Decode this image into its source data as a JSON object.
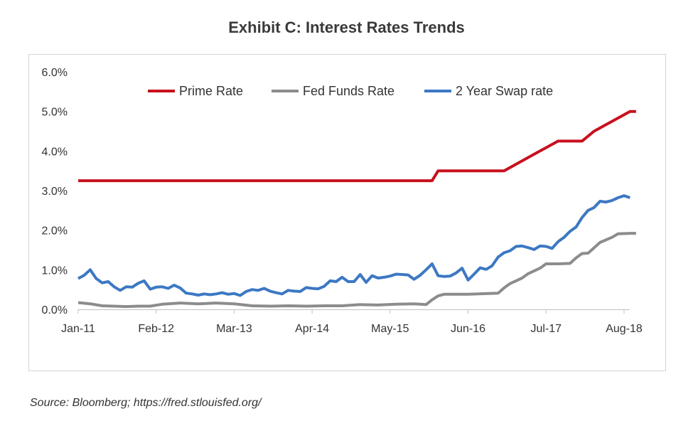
{
  "title": "Exhibit C:  Interest Rates Trends",
  "source": "Source: Bloomberg; https://fred.stlouisfed.org/",
  "colors": {
    "Prime Rate": "#c8101e",
    "Fed Funds Rate": "#8c8c8c",
    "2 Year Swap rate": "#3c78c3"
  },
  "chart_data": {
    "type": "line",
    "title": "Exhibit C:  Interest Rates Trends",
    "xlabel": "",
    "ylabel": "",
    "x_ticks": [
      "Jan-11",
      "Feb-12",
      "Mar-13",
      "Apr-14",
      "May-15",
      "Jun-16",
      "Jul-17",
      "Aug-18"
    ],
    "y_ticks": [
      "0.0%",
      "1.0%",
      "2.0%",
      "3.0%",
      "4.0%",
      "5.0%",
      "6.0%"
    ],
    "ylim": [
      0,
      6
    ],
    "legend_position": "top-center",
    "grid": false,
    "series": [
      {
        "name": "Prime Rate",
        "points": [
          [
            "Jan-11",
            3.25
          ],
          [
            "Dec-15",
            3.25
          ],
          [
            "Jan-16",
            3.5
          ],
          [
            "Dec-16",
            3.5
          ],
          [
            "Mar-17",
            3.75
          ],
          [
            "Jun-17",
            4.0
          ],
          [
            "Sep-17",
            4.25
          ],
          [
            "Jan-18",
            4.25
          ],
          [
            "Mar-18",
            4.5
          ],
          [
            "Jun-18",
            4.75
          ],
          [
            "Sep-18",
            5.0
          ],
          [
            "Oct-18",
            5.0
          ]
        ]
      },
      {
        "name": "Fed Funds Rate",
        "points": [
          [
            "Jan-11",
            0.17
          ],
          [
            "Mar-11",
            0.14
          ],
          [
            "May-11",
            0.09
          ],
          [
            "Jul-11",
            0.08
          ],
          [
            "Sep-11",
            0.07
          ],
          [
            "Nov-11",
            0.08
          ],
          [
            "Jan-12",
            0.08
          ],
          [
            "Mar-12",
            0.13
          ],
          [
            "Jun-12",
            0.16
          ],
          [
            "Sep-12",
            0.14
          ],
          [
            "Dec-12",
            0.16
          ],
          [
            "Mar-13",
            0.14
          ],
          [
            "Jun-13",
            0.09
          ],
          [
            "Sep-13",
            0.08
          ],
          [
            "Dec-13",
            0.09
          ],
          [
            "Mar-14",
            0.08
          ],
          [
            "Jun-14",
            0.09
          ],
          [
            "Sep-14",
            0.09
          ],
          [
            "Dec-14",
            0.12
          ],
          [
            "Mar-15",
            0.11
          ],
          [
            "Jun-15",
            0.13
          ],
          [
            "Sep-15",
            0.14
          ],
          [
            "Nov-15",
            0.12
          ],
          [
            "Dec-15",
            0.24
          ],
          [
            "Jan-16",
            0.34
          ],
          [
            "Feb-16",
            0.38
          ],
          [
            "Jun-16",
            0.38
          ],
          [
            "Nov-16",
            0.41
          ],
          [
            "Dec-16",
            0.54
          ],
          [
            "Jan-17",
            0.65
          ],
          [
            "Mar-17",
            0.79
          ],
          [
            "Apr-17",
            0.9
          ],
          [
            "Jun-17",
            1.04
          ],
          [
            "Jul-17",
            1.15
          ],
          [
            "Sep-17",
            1.15
          ],
          [
            "Nov-17",
            1.16
          ],
          [
            "Dec-17",
            1.3
          ],
          [
            "Jan-18",
            1.41
          ],
          [
            "Feb-18",
            1.42
          ],
          [
            "Apr-18",
            1.69
          ],
          [
            "Jun-18",
            1.82
          ],
          [
            "Jul-18",
            1.91
          ],
          [
            "Sep-18",
            1.92
          ],
          [
            "Oct-18",
            1.92
          ]
        ]
      },
      {
        "name": "2 Year Swap rate",
        "points": [
          [
            "Jan-11",
            0.78
          ],
          [
            "Feb-11",
            0.86
          ],
          [
            "Mar-11",
            1.0
          ],
          [
            "Apr-11",
            0.78
          ],
          [
            "May-11",
            0.67
          ],
          [
            "Jun-11",
            0.7
          ],
          [
            "Jul-11",
            0.57
          ],
          [
            "Aug-11",
            0.48
          ],
          [
            "Sep-11",
            0.57
          ],
          [
            "Oct-11",
            0.56
          ],
          [
            "Nov-11",
            0.66
          ],
          [
            "Dec-11",
            0.72
          ],
          [
            "Jan-12",
            0.51
          ],
          [
            "Feb-12",
            0.56
          ],
          [
            "Mar-12",
            0.57
          ],
          [
            "Apr-12",
            0.53
          ],
          [
            "May-12",
            0.61
          ],
          [
            "Jun-12",
            0.54
          ],
          [
            "Jul-12",
            0.41
          ],
          [
            "Aug-12",
            0.39
          ],
          [
            "Sep-12",
            0.36
          ],
          [
            "Oct-12",
            0.39
          ],
          [
            "Nov-12",
            0.37
          ],
          [
            "Dec-12",
            0.39
          ],
          [
            "Jan-13",
            0.42
          ],
          [
            "Feb-13",
            0.38
          ],
          [
            "Mar-13",
            0.4
          ],
          [
            "Apr-13",
            0.35
          ],
          [
            "May-13",
            0.45
          ],
          [
            "Jun-13",
            0.5
          ],
          [
            "Jul-13",
            0.48
          ],
          [
            "Aug-13",
            0.53
          ],
          [
            "Sep-13",
            0.46
          ],
          [
            "Oct-13",
            0.42
          ],
          [
            "Nov-13",
            0.39
          ],
          [
            "Dec-13",
            0.48
          ],
          [
            "Jan-14",
            0.46
          ],
          [
            "Feb-14",
            0.45
          ],
          [
            "Mar-14",
            0.55
          ],
          [
            "Apr-14",
            0.53
          ],
          [
            "May-14",
            0.52
          ],
          [
            "Jun-14",
            0.58
          ],
          [
            "Jul-14",
            0.72
          ],
          [
            "Aug-14",
            0.7
          ],
          [
            "Sep-14",
            0.81
          ],
          [
            "Oct-14",
            0.7
          ],
          [
            "Nov-14",
            0.7
          ],
          [
            "Dec-14",
            0.88
          ],
          [
            "Jan-15",
            0.68
          ],
          [
            "Feb-15",
            0.85
          ],
          [
            "Mar-15",
            0.79
          ],
          [
            "Apr-15",
            0.81
          ],
          [
            "May-15",
            0.84
          ],
          [
            "Jun-15",
            0.89
          ],
          [
            "Jul-15",
            0.88
          ],
          [
            "Aug-15",
            0.87
          ],
          [
            "Sep-15",
            0.76
          ],
          [
            "Oct-15",
            0.86
          ],
          [
            "Nov-15",
            1.0
          ],
          [
            "Dec-15",
            1.15
          ],
          [
            "Jan-16",
            0.85
          ],
          [
            "Feb-16",
            0.83
          ],
          [
            "Mar-16",
            0.84
          ],
          [
            "Apr-16",
            0.92
          ],
          [
            "May-16",
            1.04
          ],
          [
            "Jun-16",
            0.74
          ],
          [
            "Jul-16",
            0.89
          ],
          [
            "Aug-16",
            1.05
          ],
          [
            "Sep-16",
            1.01
          ],
          [
            "Oct-16",
            1.1
          ],
          [
            "Nov-16",
            1.32
          ],
          [
            "Dec-16",
            1.43
          ],
          [
            "Jan-17",
            1.48
          ],
          [
            "Feb-17",
            1.59
          ],
          [
            "Mar-17",
            1.6
          ],
          [
            "Apr-17",
            1.56
          ],
          [
            "May-17",
            1.51
          ],
          [
            "Jun-17",
            1.6
          ],
          [
            "Jul-17",
            1.59
          ],
          [
            "Aug-17",
            1.54
          ],
          [
            "Sep-17",
            1.71
          ],
          [
            "Oct-17",
            1.82
          ],
          [
            "Nov-17",
            1.97
          ],
          [
            "Dec-17",
            2.08
          ],
          [
            "Jan-18",
            2.32
          ],
          [
            "Feb-18",
            2.5
          ],
          [
            "Mar-18",
            2.57
          ],
          [
            "Apr-18",
            2.73
          ],
          [
            "May-18",
            2.71
          ],
          [
            "Jun-18",
            2.75
          ],
          [
            "Jul-18",
            2.82
          ],
          [
            "Aug-18",
            2.87
          ],
          [
            "Sep-18",
            2.82
          ]
        ]
      }
    ]
  }
}
